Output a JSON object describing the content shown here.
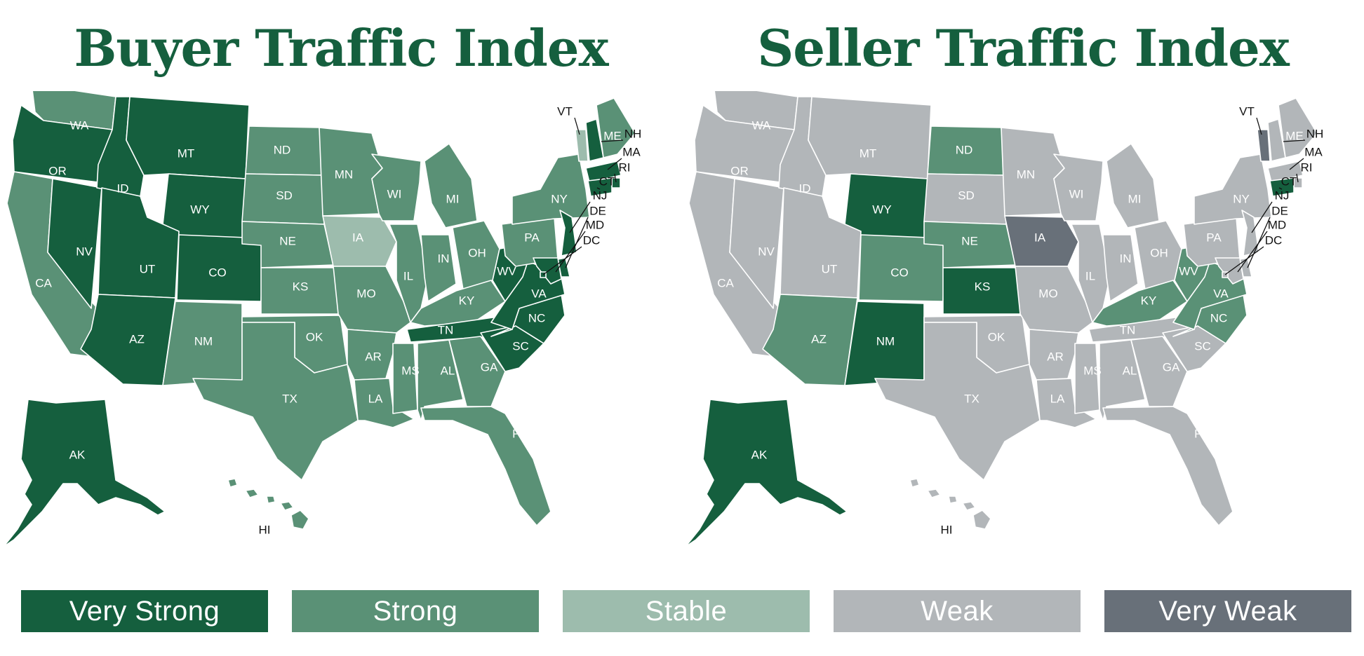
{
  "maps": [
    {
      "title": "Buyer Traffic Index",
      "states": {
        "WA": "Strong",
        "OR": "Very Strong",
        "CA": "Strong",
        "NV": "Very Strong",
        "ID": "Very Strong",
        "MT": "Very Strong",
        "WY": "Very Strong",
        "UT": "Very Strong",
        "CO": "Very Strong",
        "AZ": "Very Strong",
        "NM": "Strong",
        "ND": "Strong",
        "SD": "Strong",
        "NE": "Strong",
        "KS": "Strong",
        "OK": "Strong",
        "TX": "Strong",
        "MN": "Strong",
        "IA": "Stable",
        "MO": "Strong",
        "AR": "Strong",
        "LA": "Strong",
        "WI": "Strong",
        "IL": "Strong",
        "MI": "Strong",
        "IN": "Strong",
        "OH": "Strong",
        "KY": "Strong",
        "TN": "Very Strong",
        "MS": "Strong",
        "AL": "Strong",
        "GA": "Strong",
        "FL": "Strong",
        "SC": "Very Strong",
        "NC": "Very Strong",
        "VA": "Very Strong",
        "WV": "Very Strong",
        "PA": "Strong",
        "NY": "Strong",
        "VT": "Stable",
        "NH": "Very Strong",
        "ME": "Strong",
        "MA": "Very Strong",
        "RI": "Very Strong",
        "CT": "Very Strong",
        "NJ": "Very Strong",
        "DE": "Very Strong",
        "MD": "Very Strong",
        "DC": "Very Strong",
        "AK": "Very Strong",
        "HI": "Strong"
      }
    },
    {
      "title": "Seller Traffic Index",
      "states": {
        "WA": "Weak",
        "OR": "Weak",
        "CA": "Weak",
        "NV": "Weak",
        "ID": "Weak",
        "MT": "Weak",
        "WY": "Very Strong",
        "UT": "Weak",
        "CO": "Strong",
        "AZ": "Strong",
        "NM": "Very Strong",
        "ND": "Strong",
        "SD": "Weak",
        "NE": "Strong",
        "KS": "Very Strong",
        "OK": "Weak",
        "TX": "Weak",
        "MN": "Weak",
        "IA": "Very Weak",
        "MO": "Weak",
        "AR": "Weak",
        "LA": "Weak",
        "WI": "Weak",
        "IL": "Weak",
        "MI": "Weak",
        "IN": "Weak",
        "OH": "Weak",
        "KY": "Strong",
        "TN": "Weak",
        "MS": "Weak",
        "AL": "Weak",
        "GA": "Weak",
        "FL": "Weak",
        "SC": "Weak",
        "NC": "Strong",
        "VA": "Strong",
        "WV": "Strong",
        "PA": "Weak",
        "NY": "Weak",
        "VT": "Very Weak",
        "NH": "Weak",
        "ME": "Weak",
        "MA": "Weak",
        "RI": "Weak",
        "CT": "Very Strong",
        "NJ": "Weak",
        "DE": "Weak",
        "MD": "Weak",
        "DC": "Weak",
        "AK": "Very Strong",
        "HI": "Weak"
      }
    }
  ],
  "legend": [
    {
      "label": "Very Strong",
      "color": "#155f3e"
    },
    {
      "label": "Strong",
      "color": "#5a9176"
    },
    {
      "label": "Stable",
      "color": "#9dbcad"
    },
    {
      "label": "Weak",
      "color": "#b2b6b9"
    },
    {
      "label": "Very Weak",
      "color": "#687079"
    }
  ],
  "state_labels": {
    "WA": "WA",
    "OR": "OR",
    "CA": "CA",
    "NV": "NV",
    "ID": "ID",
    "MT": "MT",
    "WY": "WY",
    "UT": "UT",
    "CO": "CO",
    "AZ": "AZ",
    "NM": "NM",
    "ND": "ND",
    "SD": "SD",
    "NE": "NE",
    "KS": "KS",
    "OK": "OK",
    "TX": "TX",
    "MN": "MN",
    "IA": "IA",
    "MO": "MO",
    "AR": "AR",
    "LA": "LA",
    "WI": "WI",
    "IL": "IL",
    "MI": "MI",
    "IN": "IN",
    "OH": "OH",
    "KY": "KY",
    "TN": "TN",
    "MS": "MS",
    "AL": "AL",
    "GA": "GA",
    "FL": "FL",
    "SC": "SC",
    "NC": "NC",
    "VA": "VA",
    "WV": "WV",
    "PA": "PA",
    "NY": "NY",
    "VT": "VT",
    "NH": "NH",
    "ME": "ME",
    "MA": "MA",
    "RI": "RI",
    "CT": "CT",
    "NJ": "NJ",
    "DE": "DE",
    "MD": "MD",
    "DC": "DC",
    "AK": "AK",
    "HI": "HI"
  }
}
